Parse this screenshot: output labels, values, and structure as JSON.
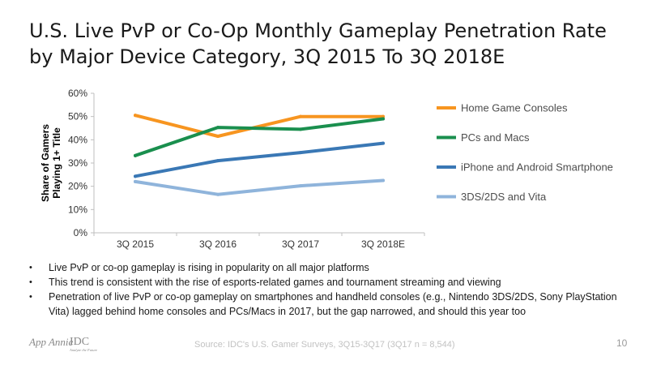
{
  "title": "U.S. Live PvP or Co-Op Monthly Gameplay Penetration Rate by Major Device Category, 3Q 2015 To 3Q 2018E",
  "chart_data": {
    "type": "line",
    "categories": [
      "3Q 2015",
      "3Q 2016",
      "3Q 2017",
      "3Q 2018E"
    ],
    "ylabel": [
      "Share of Gamers",
      "Playing 1+ Title"
    ],
    "ylim": [
      0,
      60
    ],
    "yticks": [
      0,
      10,
      20,
      30,
      40,
      50,
      60
    ],
    "ytick_labels": [
      "0%",
      "10%",
      "20%",
      "30%",
      "40%",
      "50%",
      "60%"
    ],
    "grid": false,
    "legend_position": "right",
    "series": [
      {
        "name": "Home Game Consoles",
        "values": [
          50.5,
          41.5,
          50,
          50
        ],
        "color": "#f79520"
      },
      {
        "name": "PCs and Macs",
        "values": [
          33.2,
          45.3,
          44.5,
          49
        ],
        "color": "#1a8f4e"
      },
      {
        "name": "iPhone and Android Smartphone",
        "values": [
          24.3,
          31,
          34.5,
          38.5
        ],
        "color": "#3a78b5"
      },
      {
        "name": "3DS/2DS and Vita",
        "values": [
          22,
          16.5,
          20.2,
          22.5
        ],
        "color": "#8fb4db"
      }
    ]
  },
  "bullets": [
    "Live PvP or co-op gameplay is rising in popularity on all major platforms",
    "This trend is consistent with the rise of esports-related games and tournament streaming and viewing",
    "Penetration of live PvP or co-op gameplay on smartphones and handheld consoles (e.g., Nintendo 3DS/2DS, Sony PlayStation Vita) lagged behind home consoles and PCs/Macs in 2017, but the gap narrowed, and should this year too"
  ],
  "footer": {
    "logo_appannie": "App Annie",
    "logo_idc": "IDC",
    "logo_idc_tagline": "Analyze the Future",
    "source": "Source: IDC's U.S. Gamer Surveys, 3Q15-3Q17 (3Q17 n = 8,544)",
    "page_number": "10"
  }
}
